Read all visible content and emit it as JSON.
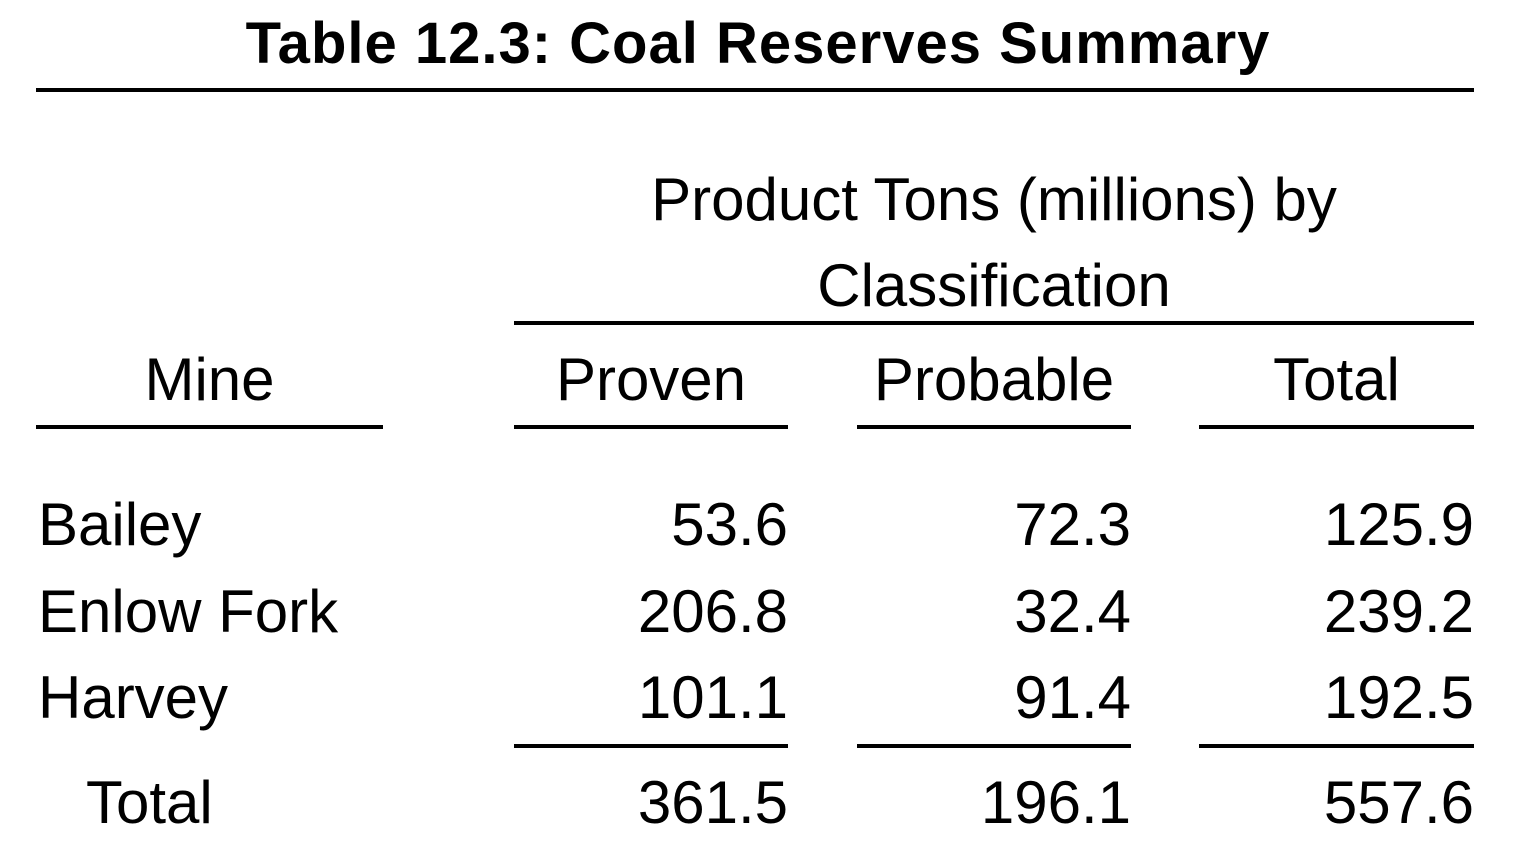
{
  "title": "Table 12.3: Coal Reserves Summary",
  "table": {
    "group_header": "Product Tons (millions) by Classification",
    "columns": [
      "Mine",
      "Proven",
      "Probable",
      "Total"
    ],
    "rows": [
      [
        "Bailey",
        53.6,
        72.3,
        125.9
      ],
      [
        "Enlow Fork",
        206.8,
        32.4,
        239.2
      ],
      [
        "Harvey",
        101.1,
        91.4,
        192.5
      ]
    ],
    "total_row": [
      "Total",
      361.5,
      196.1,
      557.6
    ]
  }
}
